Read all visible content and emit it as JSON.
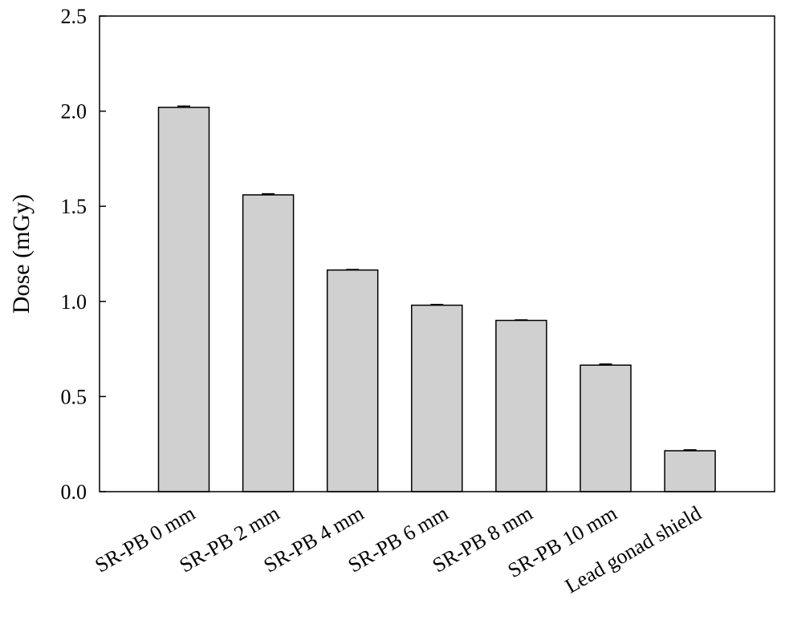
{
  "chart_data": {
    "type": "bar",
    "title": "",
    "xlabel": "",
    "ylabel": "Dose (mGy)",
    "categories": [
      "SR-PB 0 mm",
      "SR-PB 2 mm",
      "SR-PB 4 mm",
      "SR-PB 6 mm",
      "SR-PB 8 mm",
      "SR-PB 10 mm",
      "Lead gonad shield"
    ],
    "values": [
      2.02,
      1.56,
      1.165,
      0.98,
      0.9,
      0.665,
      0.215
    ],
    "errors": [
      0.006,
      0.005,
      0.002,
      0.003,
      0.002,
      0.005,
      0.004
    ],
    "ylim": [
      0,
      2.5
    ],
    "yticks": [
      0.0,
      0.5,
      1.0,
      1.5,
      2.0,
      2.5
    ],
    "ytick_labels": [
      "0.0",
      "0.5",
      "1.0",
      "1.5",
      "2.0",
      "2.5"
    ],
    "grid": false,
    "legend": "none",
    "colors": {
      "bar_fill": "#d0d0d0",
      "bar_stroke": "#000000",
      "axis": "#000000"
    }
  }
}
